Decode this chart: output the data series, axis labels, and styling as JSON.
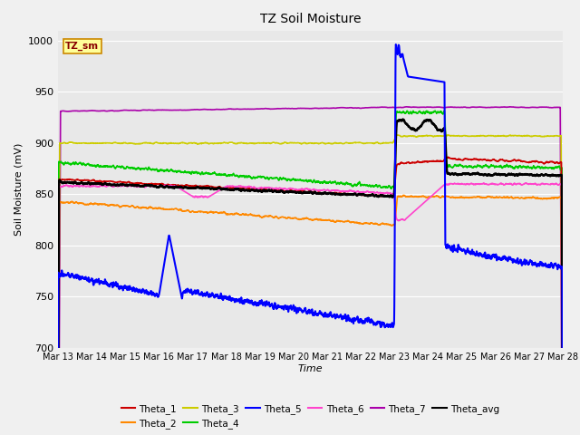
{
  "title": "TZ Soil Moisture",
  "xlabel": "Time",
  "ylabel": "Soil Moisture (mV)",
  "ylim": [
    700,
    1010
  ],
  "xlim": [
    0,
    15
  ],
  "yticks": [
    700,
    750,
    800,
    850,
    900,
    950,
    1000
  ],
  "xtick_labels": [
    "Mar 13",
    "Mar 14",
    "Mar 15",
    "Mar 16",
    "Mar 17",
    "Mar 18",
    "Mar 19",
    "Mar 20",
    "Mar 21",
    "Mar 22",
    "Mar 23",
    "Mar 24",
    "Mar 25",
    "Mar 26",
    "Mar 27",
    "Mar 28"
  ],
  "legend_label": "TZ_sm",
  "series_colors": {
    "Theta_1": "#cc0000",
    "Theta_2": "#ff8800",
    "Theta_3": "#cccc00",
    "Theta_4": "#00cc00",
    "Theta_5": "#0000ff",
    "Theta_6": "#ff44cc",
    "Theta_7": "#aa00aa",
    "Theta_avg": "#000000"
  },
  "fig_bg": "#f0f0f0",
  "plot_bg": "#e8e8e8",
  "grid_color": "#ffffff",
  "irr_day": 10.0,
  "irr_end_day": 11.5
}
